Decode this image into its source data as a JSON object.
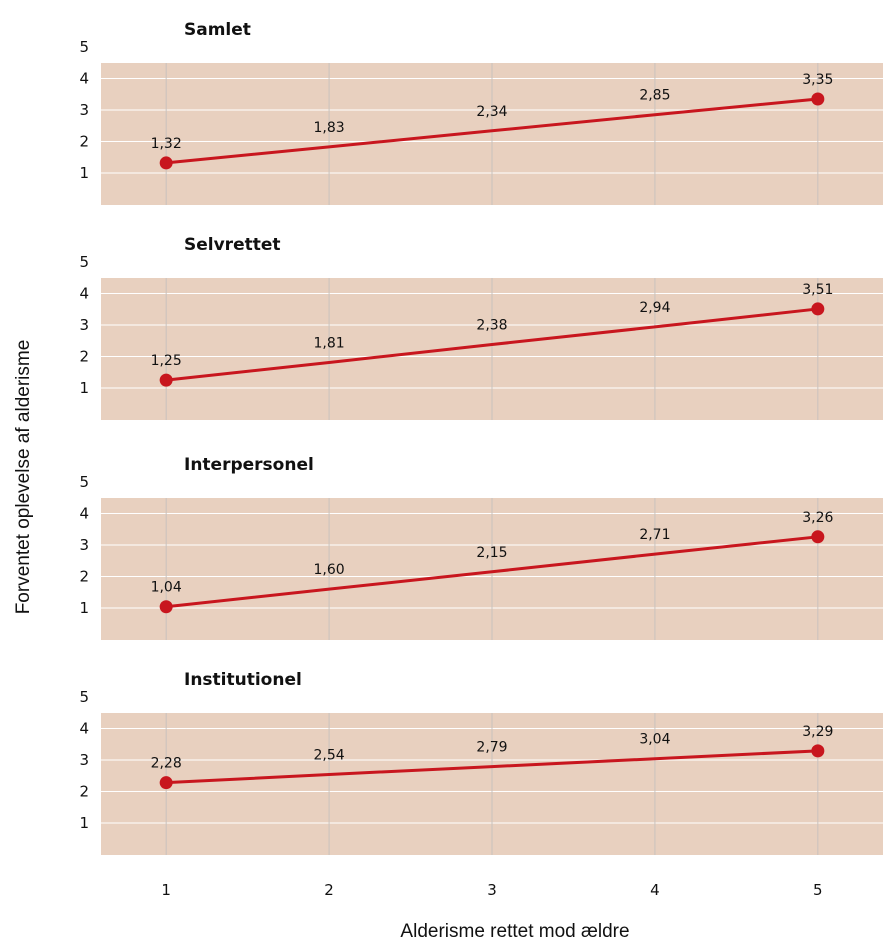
{
  "colors": {
    "panel_bg": "#e8d0bf",
    "grid": "#ffffff",
    "vgrid": "#c9c2bd",
    "line": "#c8161e"
  },
  "chart_data": {
    "type": "line",
    "xlabel": "Alderisme rettet mod ældre",
    "ylabel": "Forventet oplevelse af alderisme",
    "x_ticks": [
      1,
      2,
      3,
      4,
      5
    ],
    "y_ticks": [
      1,
      2,
      3,
      4,
      5
    ],
    "xlim": [
      0.6,
      5.4
    ],
    "ylim": [
      0,
      5
    ],
    "grid": true,
    "panels": [
      {
        "title": "Samlet",
        "x": [
          1,
          2,
          3,
          4,
          5
        ],
        "values": [
          1.32,
          1.83,
          2.34,
          2.85,
          3.35
        ],
        "labels": [
          "1,32",
          "1,83",
          "2,34",
          "2,85",
          "3,35"
        ]
      },
      {
        "title": "Selvrettet",
        "x": [
          1,
          2,
          3,
          4,
          5
        ],
        "values": [
          1.25,
          1.81,
          2.38,
          2.94,
          3.51
        ],
        "labels": [
          "1,25",
          "1,81",
          "2,38",
          "2,94",
          "3,51"
        ]
      },
      {
        "title": "Interpersonel",
        "x": [
          1,
          2,
          3,
          4,
          5
        ],
        "values": [
          1.04,
          1.6,
          2.15,
          2.71,
          3.26
        ],
        "labels": [
          "1,04",
          "1,60",
          "2,15",
          "2,71",
          "3,26"
        ]
      },
      {
        "title": "Institutionel",
        "x": [
          1,
          2,
          3,
          4,
          5
        ],
        "values": [
          2.28,
          2.54,
          2.79,
          3.04,
          3.29
        ],
        "labels": [
          "2,28",
          "2,54",
          "2,79",
          "3,04",
          "3,29"
        ]
      }
    ]
  }
}
